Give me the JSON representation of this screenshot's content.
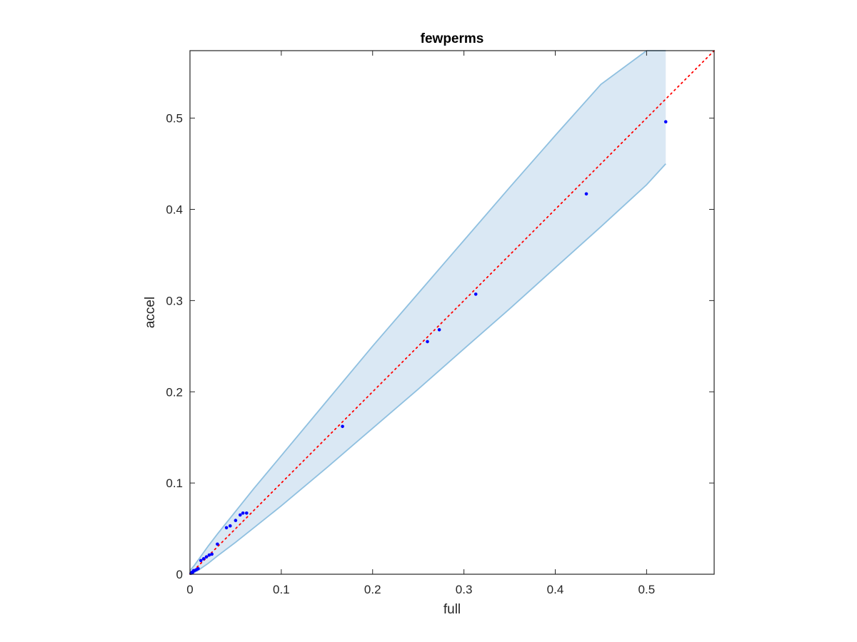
{
  "chart_data": {
    "type": "scatter",
    "title": "fewperms",
    "xlabel": "full",
    "ylabel": "accel",
    "xlim": [
      0,
      0.574
    ],
    "ylim": [
      0,
      0.574
    ],
    "x_ticks": [
      "0",
      "0.1",
      "0.2",
      "0.3",
      "0.4",
      "0.5"
    ],
    "y_ticks": [
      "0",
      "0.1",
      "0.2",
      "0.3",
      "0.4",
      "0.5"
    ],
    "x_tick_values": [
      0,
      0.1,
      0.2,
      0.3,
      0.4,
      0.5
    ],
    "y_tick_values": [
      0,
      0.1,
      0.2,
      0.3,
      0.4,
      0.5
    ],
    "grid": false,
    "colors": {
      "points": "#0000ff",
      "reference_line": "#ff0000",
      "band_fill": "#dae8f4",
      "band_edge": "#8fc0e0",
      "axes": "#262626"
    },
    "reference_line": {
      "x": [
        0,
        0.574
      ],
      "y": [
        0,
        0.574
      ],
      "style": "dotted"
    },
    "band": {
      "x": [
        0,
        0.005,
        0.01,
        0.02,
        0.03,
        0.05,
        0.07,
        0.1,
        0.15,
        0.2,
        0.25,
        0.3,
        0.35,
        0.4,
        0.45,
        0.5,
        0.521
      ],
      "upper": [
        0.004,
        0.01,
        0.017,
        0.031,
        0.044,
        0.069,
        0.094,
        0.13,
        0.19,
        0.25,
        0.308,
        0.366,
        0.424,
        0.481,
        0.537,
        0.574,
        0.574
      ],
      "lower": [
        0,
        0.002,
        0.005,
        0.012,
        0.02,
        0.035,
        0.051,
        0.075,
        0.117,
        0.16,
        0.203,
        0.247,
        0.291,
        0.336,
        0.381,
        0.427,
        0.45
      ]
    },
    "series": [
      {
        "x": [
          0.001,
          0.002,
          0.003,
          0.004,
          0.005,
          0.007,
          0.009,
          0.012,
          0.015,
          0.018,
          0.021,
          0.024,
          0.03,
          0.04,
          0.044,
          0.05,
          0.055,
          0.058,
          0.062,
          0.167,
          0.26,
          0.273,
          0.313,
          0.434,
          0.521
        ],
        "y": [
          0.001,
          0.002,
          0.002,
          0.004,
          0.004,
          0.005,
          0.006,
          0.015,
          0.017,
          0.019,
          0.021,
          0.022,
          0.033,
          0.051,
          0.053,
          0.059,
          0.065,
          0.067,
          0.067,
          0.162,
          0.255,
          0.268,
          0.307,
          0.417,
          0.496
        ]
      }
    ]
  }
}
